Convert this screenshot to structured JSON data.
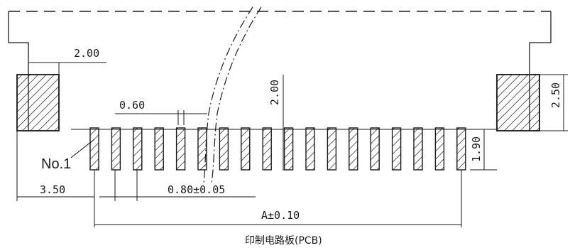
{
  "drawing": {
    "pitch_label": "0.60",
    "pad_width_label": "2.00",
    "pad_height_label": "2.50",
    "offset_label": "3.50",
    "pin_width_label": "0.80±0.05",
    "vertical_gap_label": "2.00",
    "pin_length_label": "1.90",
    "total_label": "A±0.10",
    "pin1_label": "No.1",
    "caption": "印制电路板(PCB)",
    "pin_count": 18
  }
}
